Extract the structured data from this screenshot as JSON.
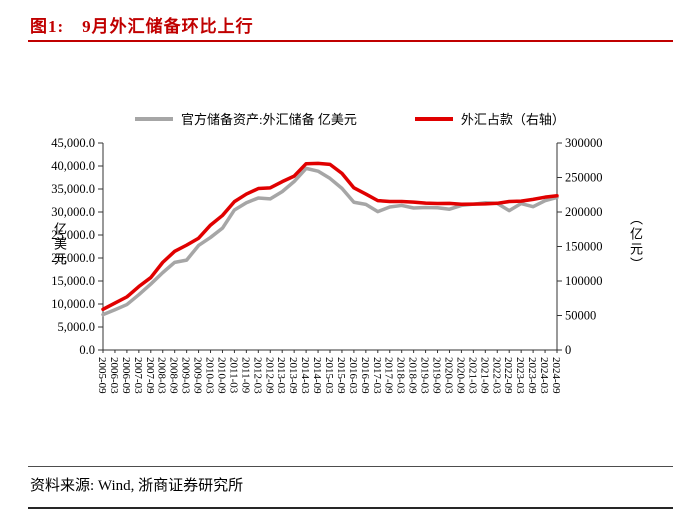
{
  "figure": {
    "title": "图1:　9月外汇储备环比上行",
    "source": "资料来源: Wind, 浙商证券研究所"
  },
  "chart_data": {
    "type": "line",
    "grid": false,
    "legend_position": "top",
    "categories": [
      "2005-09",
      "2006-03",
      "2006-09",
      "2007-03",
      "2007-09",
      "2008-03",
      "2008-09",
      "2009-03",
      "2009-09",
      "2010-03",
      "2010-09",
      "2011-03",
      "2011-09",
      "2012-03",
      "2012-09",
      "2013-03",
      "2013-09",
      "2014-03",
      "2014-09",
      "2015-03",
      "2015-09",
      "2016-03",
      "2016-09",
      "2017-03",
      "2017-09",
      "2018-03",
      "2018-09",
      "2019-03",
      "2019-09",
      "2020-03",
      "2020-09",
      "2021-03",
      "2021-09",
      "2022-03",
      "2022-09",
      "2023-03",
      "2023-09",
      "2024-03",
      "2024-09"
    ],
    "series": [
      {
        "name": "官方储备资产:外汇储备 亿美元",
        "axis": "left",
        "color": "#a6a6a6",
        "values": [
          7690,
          8751,
          9879,
          12020,
          14336,
          16822,
          19056,
          19537,
          22726,
          24471,
          26483,
          30447,
          32017,
          33050,
          32851,
          34426,
          36627,
          39481,
          38877,
          37300,
          35141,
          32126,
          31664,
          30091,
          31085,
          31428,
          30870,
          30988,
          30924,
          30606,
          31426,
          31700,
          32006,
          31880,
          30290,
          31839,
          31151,
          32457,
          33164
        ]
      },
      {
        "name": "外汇占款（右轴）",
        "axis": "right",
        "color": "#e00000",
        "values": [
          59000,
          68000,
          77000,
          92000,
          105000,
          127000,
          143000,
          152000,
          162000,
          181000,
          195000,
          215000,
          226000,
          234000,
          235000,
          244000,
          252000,
          270000,
          270500,
          269000,
          256000,
          235000,
          226000,
          216500,
          215300,
          215200,
          214300,
          212900,
          212300,
          212500,
          211200,
          211500,
          211800,
          212600,
          215200,
          215800,
          218300,
          221500,
          223500
        ]
      }
    ],
    "left_axis": {
      "title": "亿美元",
      "min": 0,
      "max": 45000,
      "step": 5000,
      "tick_labels": [
        "0.0",
        "5,000.0",
        "10,000.0",
        "15,000.0",
        "20,000.0",
        "25,000.0",
        "30,000.0",
        "35,000.0",
        "40,000.0",
        "45,000.0"
      ]
    },
    "right_axis": {
      "title": "（亿元）",
      "min": 0,
      "max": 300000,
      "step": 50000,
      "tick_labels": [
        "0",
        "50000",
        "100000",
        "150000",
        "200000",
        "250000",
        "300000"
      ]
    }
  }
}
